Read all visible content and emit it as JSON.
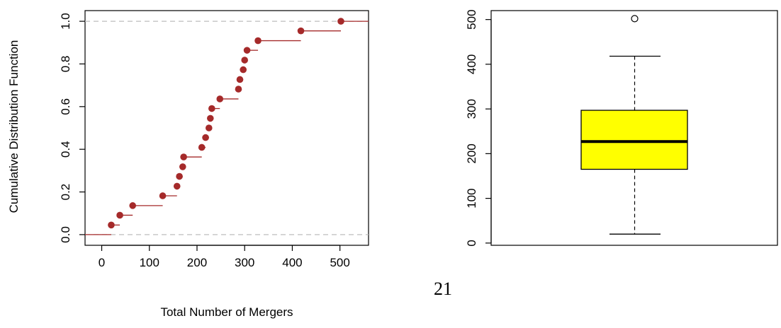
{
  "chart_data": [
    {
      "type": "step",
      "xlabel": "Total Number of Mergers",
      "ylabel": "Cumulative Distribution Function",
      "xlim": [
        -35,
        560
      ],
      "ylim": [
        -0.05,
        1.05
      ],
      "xticks": [
        0,
        100,
        200,
        300,
        400,
        500
      ],
      "yticks": [
        0.0,
        0.2,
        0.4,
        0.6,
        0.8,
        1.0
      ],
      "ytick_labels": [
        "0.0",
        "0.2",
        "0.4",
        "0.6",
        "0.8",
        "1.0"
      ],
      "reference_lines_y": [
        0,
        1
      ],
      "x": [
        20,
        38,
        65,
        128,
        158,
        163,
        170,
        172,
        210,
        218,
        225,
        228,
        231,
        248,
        287,
        290,
        297,
        300,
        305,
        328,
        418,
        502
      ],
      "y": [
        0.045,
        0.091,
        0.136,
        0.182,
        0.227,
        0.273,
        0.318,
        0.364,
        0.409,
        0.455,
        0.5,
        0.545,
        0.591,
        0.636,
        0.682,
        0.727,
        0.773,
        0.818,
        0.864,
        0.909,
        0.955,
        1.0
      ],
      "colors": {
        "points": "#a52a2a",
        "reference": "#bebebe"
      }
    },
    {
      "type": "boxplot",
      "ylim": [
        -5,
        520
      ],
      "yticks": [
        0,
        100,
        200,
        300,
        400,
        500
      ],
      "ytick_labels": [
        "0",
        "100",
        "200",
        "300",
        "400",
        "500"
      ],
      "whisker_low": 20,
      "q1": 165,
      "median": 227,
      "q3": 297,
      "whisker_high": 418,
      "outliers": [
        502
      ],
      "colors": {
        "box_fill": "#ffff00"
      }
    }
  ],
  "page_number": "21"
}
